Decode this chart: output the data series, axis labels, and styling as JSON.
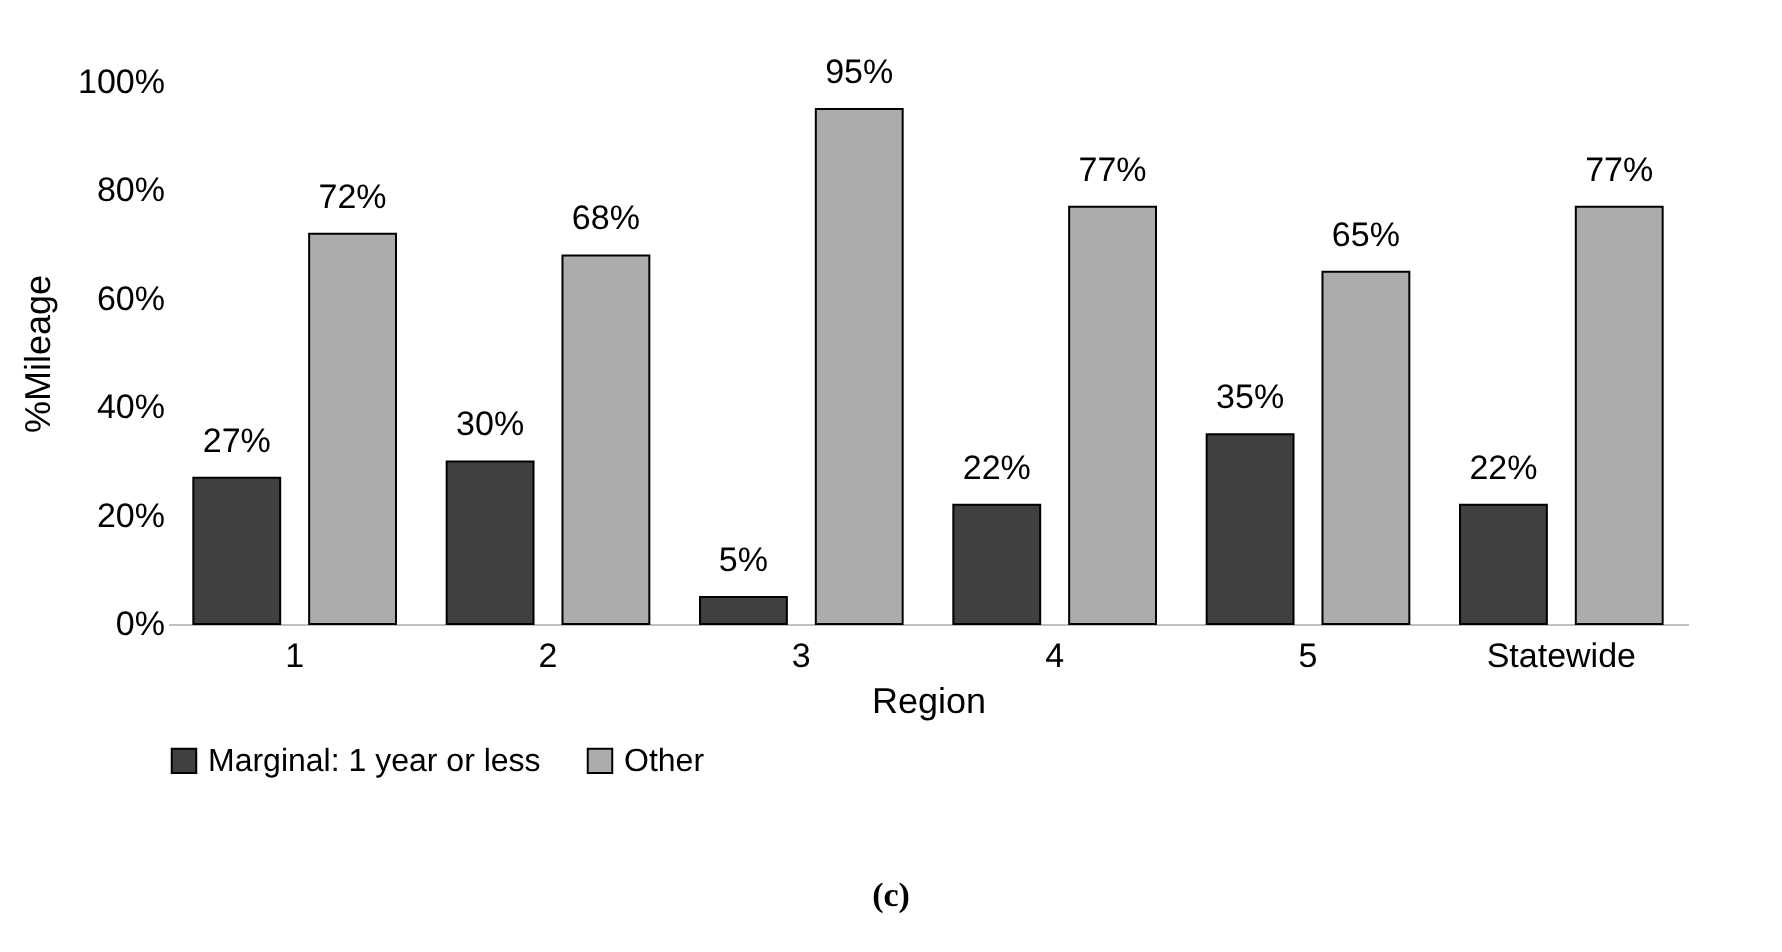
{
  "chart_data": {
    "type": "bar",
    "xlabel": "Region",
    "ylabel": "%Mileage",
    "categories": [
      "1",
      "2",
      "3",
      "4",
      "5",
      "Statewide"
    ],
    "series": [
      {
        "name": "Marginal: 1 year or less",
        "color": "#404040",
        "values": [
          27,
          30,
          5,
          22,
          35,
          22
        ],
        "value_labels": [
          "27%",
          "30%",
          "5%",
          "22%",
          "35%",
          "22%"
        ]
      },
      {
        "name": "Other",
        "color": "#aeabab",
        "values": [
          72,
          68,
          95,
          77,
          65,
          77
        ],
        "value_labels": [
          "72%",
          "68%",
          "95%",
          "77%",
          "65%",
          "77%"
        ]
      }
    ],
    "ylim": [
      0,
      100
    ],
    "yticks": [
      {
        "value": 0,
        "label": "0%"
      },
      {
        "value": 20,
        "label": "20%"
      },
      {
        "value": 40,
        "label": "40%"
      },
      {
        "value": 60,
        "label": "60%"
      },
      {
        "value": 80,
        "label": "80%"
      },
      {
        "value": 100,
        "label": "100%"
      }
    ],
    "grid": false,
    "legend": "bottom",
    "annotations": [
      "(c)"
    ]
  }
}
